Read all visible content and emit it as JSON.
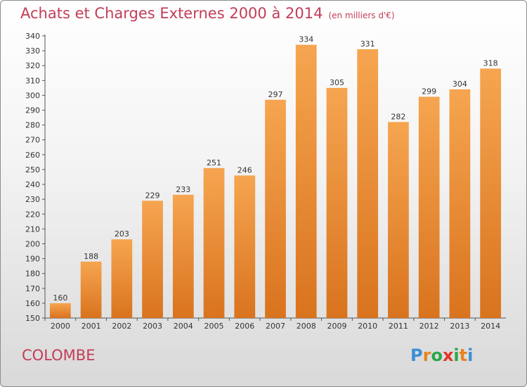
{
  "title": "Achats et Charges Externes 2000 à 2014",
  "subtitle": "(en milliers d'€)",
  "commune": "COLOMBE",
  "logo": {
    "letters": [
      "P",
      "r",
      "o",
      "x",
      "i",
      "t",
      "i"
    ],
    "colors": [
      "#3a8fd6",
      "#e8821e",
      "#2aa84a",
      "#e0352b",
      "#2aa84a",
      "#e8821e",
      "#3a8fd6"
    ]
  },
  "colors": {
    "bar_light": "#f6a550",
    "bar_dark": "#d9731e",
    "title": "#c33d57"
  },
  "chart_data": {
    "type": "bar",
    "categories": [
      "2000",
      "2001",
      "2002",
      "2003",
      "2004",
      "2005",
      "2006",
      "2007",
      "2008",
      "2009",
      "2010",
      "2011",
      "2012",
      "2013",
      "2014"
    ],
    "values": [
      160,
      188,
      203,
      229,
      233,
      251,
      246,
      297,
      334,
      305,
      331,
      282,
      299,
      304,
      318
    ],
    "ylim": [
      150,
      340
    ],
    "yticks": [
      150,
      160,
      170,
      180,
      190,
      200,
      210,
      220,
      230,
      240,
      250,
      260,
      270,
      280,
      290,
      300,
      310,
      320,
      330,
      340
    ],
    "grid": false
  }
}
